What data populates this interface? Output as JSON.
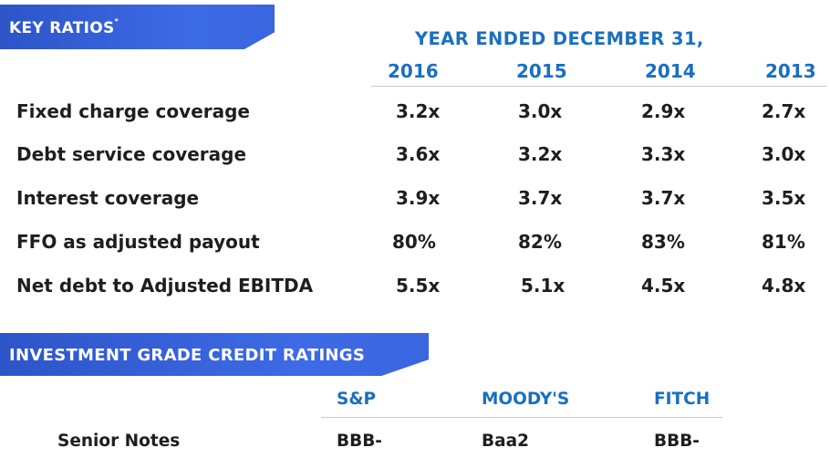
{
  "key_ratios": {
    "banner": "KEY RATIOS",
    "banner_mark": "*",
    "period_header": "YEAR ENDED DECEMBER 31,",
    "years": [
      "2016",
      "2015",
      "2014",
      "2013"
    ],
    "rows": [
      {
        "label": "Fixed charge coverage",
        "values": [
          "3.2x",
          "3.0x",
          "2.9x",
          "2.7x"
        ]
      },
      {
        "label": "Debt service coverage",
        "values": [
          "3.6x",
          "3.2x",
          "3.3x",
          "3.0x"
        ]
      },
      {
        "label": "Interest coverage",
        "values": [
          "3.9x",
          "3.7x",
          "3.7x",
          "3.5x"
        ]
      },
      {
        "label": "FFO as adjusted payout",
        "values": [
          "80%",
          "82%",
          "83%",
          "81%"
        ]
      },
      {
        "label": "Net debt to Adjusted EBITDA",
        "values": [
          "5.5x",
          "5.1x",
          "4.5x",
          "4.8x"
        ]
      }
    ]
  },
  "credit_ratings": {
    "banner": "INVESTMENT GRADE CREDIT RATINGS",
    "agencies": [
      "S&P",
      "MOODY'S",
      "FITCH"
    ],
    "rows": [
      {
        "label": "Senior Notes",
        "values": [
          "BBB-",
          "Baa2",
          "BBB-"
        ]
      }
    ]
  },
  "colors": {
    "banner_blue": "#3a66e0",
    "header_blue": "#1a6fc0",
    "text": "#1e1e1e",
    "rule": "#c8c8c8"
  }
}
